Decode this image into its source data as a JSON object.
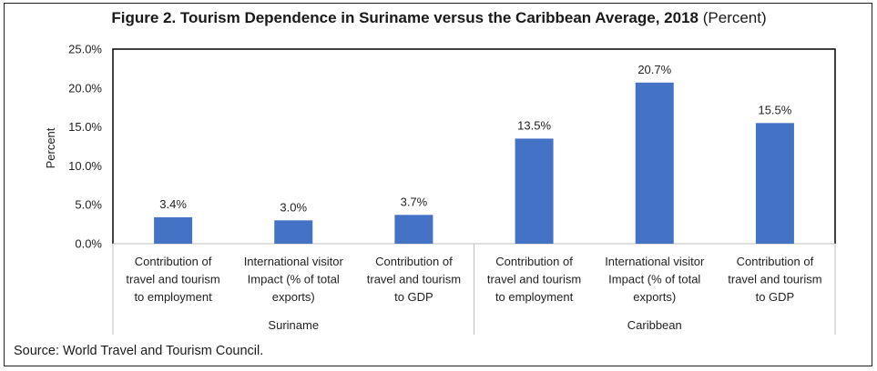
{
  "figure": {
    "title_bold": "Figure 2. Tourism Dependence in Suriname versus the Caribbean Average, 2018",
    "title_suffix": "(Percent)",
    "source": "Source: World Travel and Tourism Council."
  },
  "chart_data": {
    "type": "bar",
    "ylabel": "Percent",
    "ylim": [
      0,
      25
    ],
    "yticks": [
      "0.0%",
      "5.0%",
      "10.0%",
      "15.0%",
      "20.0%",
      "25.0%"
    ],
    "bar_color": "#4472C4",
    "groups": [
      {
        "name": "Suriname",
        "categories": [
          [
            "Contribution of",
            "travel and tourism",
            "to employment"
          ],
          [
            "International visitor",
            "Impact (% of total",
            "exports)"
          ],
          [
            "Contribution of",
            "travel and tourism",
            "to GDP"
          ]
        ],
        "values": [
          3.4,
          3.0,
          3.7
        ],
        "labels": [
          "3.4%",
          "3.0%",
          "3.7%"
        ]
      },
      {
        "name": "Caribbean",
        "categories": [
          [
            "Contribution of",
            "travel and tourism",
            "to employment"
          ],
          [
            "International visitor",
            "Impact (% of total",
            "exports)"
          ],
          [
            "Contribution of",
            "travel and tourism",
            "to GDP"
          ]
        ],
        "values": [
          13.5,
          20.7,
          15.5
        ],
        "labels": [
          "13.5%",
          "20.7%",
          "15.5%"
        ]
      }
    ]
  }
}
